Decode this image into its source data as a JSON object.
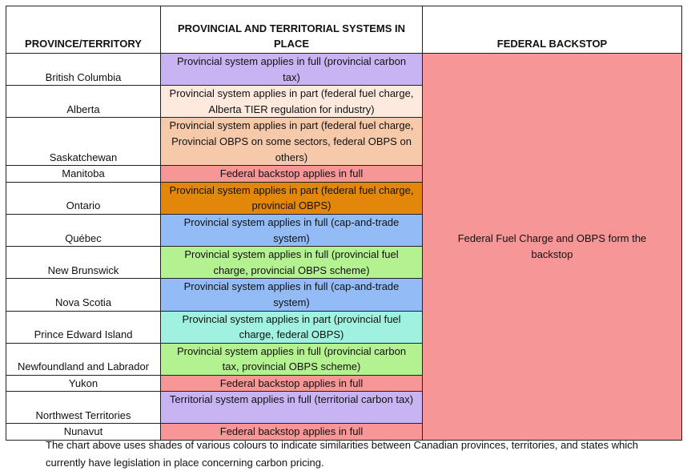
{
  "table": {
    "headers": [
      "PROVINCE/TERRITORY",
      "PROVINCIAL AND TERRITORIAL SYSTEMS IN PLACE",
      "FEDERAL BACKSTOP"
    ],
    "federal_backstop": "Federal Fuel Charge and OBPS form the backstop",
    "federal_color": "#f79696",
    "rows": [
      {
        "province": "British Columbia",
        "system": "Provincial system applies in full (provincial carbon tax)",
        "color": "#c8b4f2"
      },
      {
        "province": "Alberta",
        "system": "Provincial system applies in part (federal fuel charge, Alberta TIER regulation for industry)",
        "color": "#fde9de"
      },
      {
        "province": "Saskatchewan",
        "system": "Provincial system applies in part (federal fuel charge, Provincial OBPS on some sectors, federal OBPS on others)",
        "color": "#f6c9aa"
      },
      {
        "province": "Manitoba",
        "system": "Federal backstop applies in full",
        "color": "#f79696"
      },
      {
        "province": "Ontario",
        "system": "Provincial system applies in part (federal fuel charge, provincial OBPS)",
        "color": "#e2870a"
      },
      {
        "province": "Québec",
        "system": "Provincial system applies in full (cap-and-trade system)",
        "color": "#93bcf7"
      },
      {
        "province": "New Brunswick",
        "system": "Provincial system applies in full (provincial fuel charge, provincial OBPS scheme)",
        "color": "#b4f190"
      },
      {
        "province": "Nova Scotia",
        "system": "Provincial system applies in full (cap-and-trade system)",
        "color": "#93bcf7"
      },
      {
        "province": "Prince Edward Island",
        "system": "Provincial system applies in part (provincial fuel charge, federal OBPS)",
        "color": "#a0f1e0"
      },
      {
        "province": "Newfoundland and Labrador",
        "system": "Provincial system applies in full (provincial carbon tax, provincial OBPS scheme)",
        "color": "#b4f190"
      },
      {
        "province": "Yukon",
        "system": "Federal backstop applies in full",
        "color": "#f79696"
      },
      {
        "province": "Northwest Territories",
        "system": "Territorial system applies in full (territorial carbon tax)",
        "color": "#c8b4f2"
      },
      {
        "province": "Nunavut",
        "system": "Federal backstop applies in full",
        "color": "#f79696"
      }
    ]
  },
  "caption": "The chart above uses shades of various colours to indicate similarities between Canadian provinces, territories, and states which currently have legislation in place concerning carbon pricing."
}
